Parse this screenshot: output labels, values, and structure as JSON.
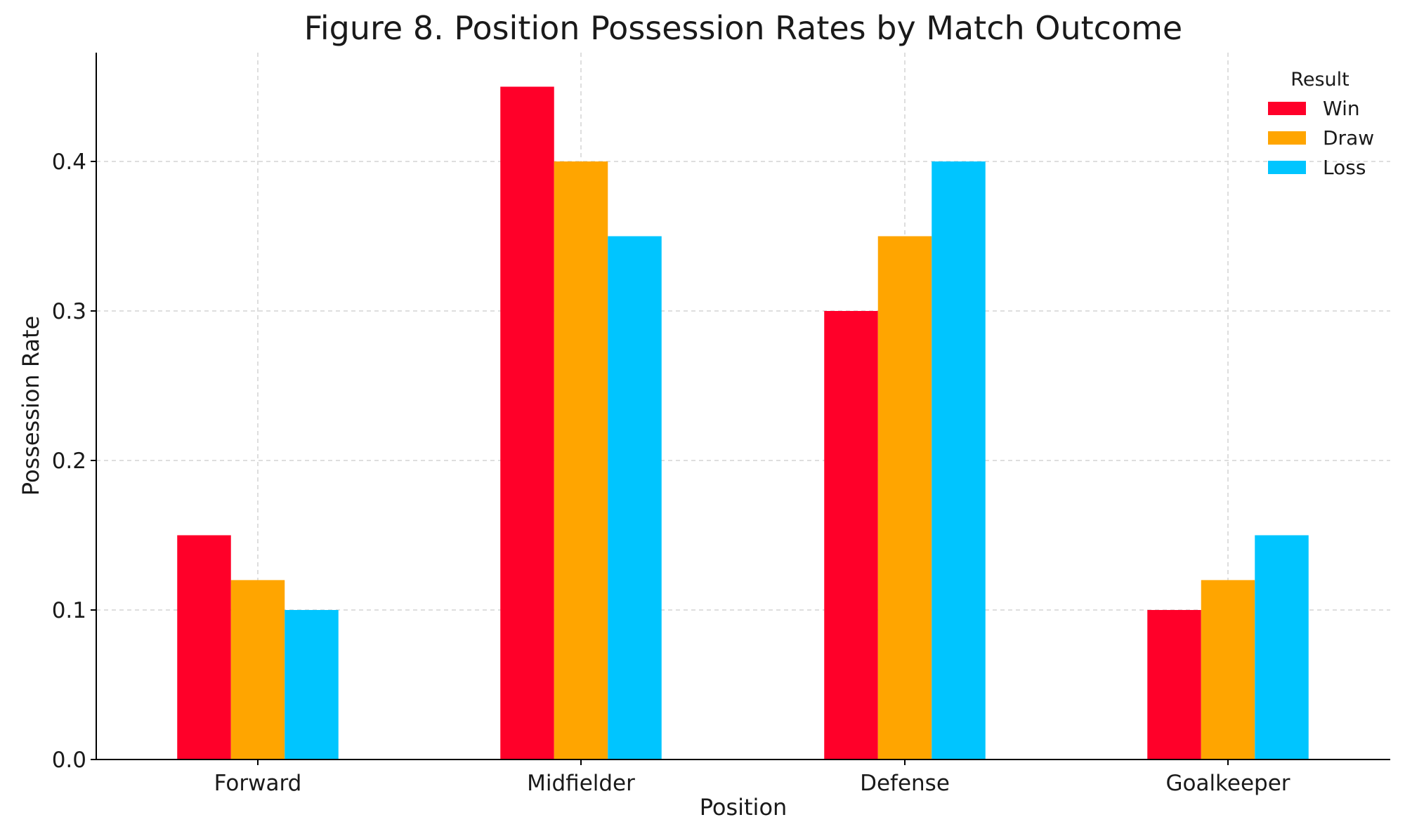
{
  "chart_data": {
    "type": "bar",
    "title": "Figure 8. Position Possession Rates by Match Outcome",
    "xlabel": "Position",
    "ylabel": "Possession Rate",
    "categories": [
      "Forward",
      "Midfielder",
      "Defense",
      "Goalkeeper"
    ],
    "series": [
      {
        "name": "Win",
        "color": "#ff0029",
        "values": [
          0.15,
          0.45,
          0.3,
          0.1
        ]
      },
      {
        "name": "Draw",
        "color": "#ffa500",
        "values": [
          0.12,
          0.4,
          0.35,
          0.12
        ]
      },
      {
        "name": "Loss",
        "color": "#00c5ff",
        "values": [
          0.1,
          0.35,
          0.4,
          0.15
        ]
      }
    ],
    "ylim": [
      0,
      0.473
    ],
    "yticks": [
      "0.0",
      "0.1",
      "0.2",
      "0.3",
      "0.4"
    ],
    "grid": true,
    "legend": {
      "title": "Result",
      "placement": "top-right"
    }
  }
}
